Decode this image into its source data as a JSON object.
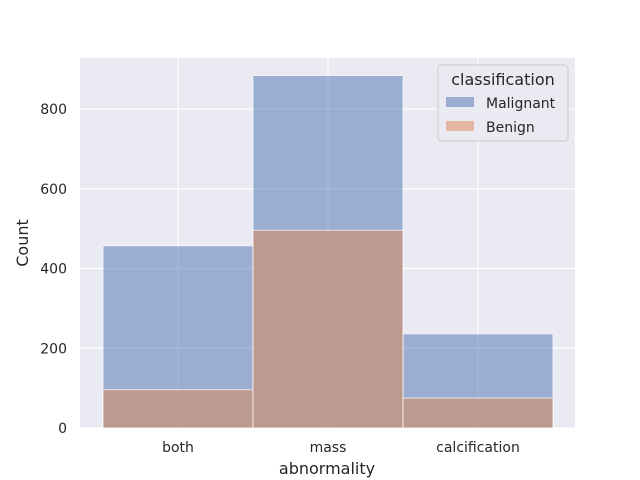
{
  "chart_data": {
    "type": "bar",
    "categories": [
      "both",
      "mass",
      "calcification"
    ],
    "series": [
      {
        "name": "Malignant",
        "values": [
          457,
          884,
          236
        ],
        "color": "#4c72b0"
      },
      {
        "name": "Benign",
        "values": [
          96,
          496,
          75
        ],
        "color": "#dd8452"
      }
    ],
    "xlabel": "abnormality",
    "ylabel": "Count",
    "yticks": [
      0,
      200,
      400,
      600,
      800
    ],
    "ylim": [
      0,
      928
    ],
    "grid": true,
    "legend": {
      "title": "classification",
      "placement": "top-right"
    },
    "background": "#eaeaf2",
    "overlap_color": "#9b91a8"
  }
}
